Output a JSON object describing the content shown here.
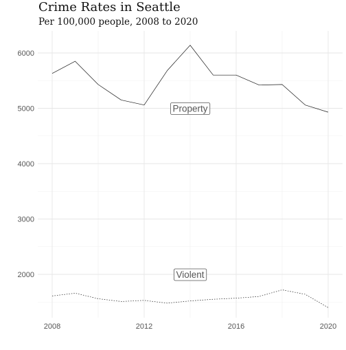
{
  "chart_data": {
    "type": "line",
    "title": "Crime Rates in Seattle",
    "subtitle": "Per 100,000 people, 2008 to 2020",
    "xlabel": "",
    "ylabel": "",
    "x": [
      2008,
      2009,
      2010,
      2011,
      2012,
      2013,
      2014,
      2015,
      2016,
      2017,
      2018,
      2019,
      2020
    ],
    "xlim": [
      2008,
      2020
    ],
    "ylim": [
      1300,
      6300
    ],
    "x_ticks": [
      2008,
      2012,
      2016,
      2020
    ],
    "x_tick_labels": [
      "2008",
      "2012",
      "2016",
      "2020"
    ],
    "y_ticks": [
      2000,
      3000,
      4000,
      5000,
      6000
    ],
    "y_tick_labels": [
      "2000",
      "3000",
      "4000",
      "5000",
      "6000"
    ],
    "grid": true,
    "legend": "none",
    "series": [
      {
        "name": "Property",
        "line_style": "solid",
        "values": [
          5630,
          5850,
          5430,
          5150,
          5060,
          5680,
          6140,
          5600,
          5600,
          5420,
          5430,
          5060,
          4930
        ],
        "label_position": {
          "x": 2014,
          "y": 5000
        }
      },
      {
        "name": "Violent",
        "line_style": "dotted",
        "values": [
          1610,
          1660,
          1560,
          1510,
          1530,
          1480,
          1520,
          1550,
          1570,
          1600,
          1720,
          1640,
          1400
        ],
        "label_position": {
          "x": 2014,
          "y": 2000
        }
      }
    ],
    "colors": {
      "line": "#1a1a1a",
      "grid_major": "#e6e6e6",
      "grid_minor": "#f0f0f0",
      "tick_label": "#555555",
      "label_text": "#555555",
      "label_border": "#555555"
    }
  }
}
